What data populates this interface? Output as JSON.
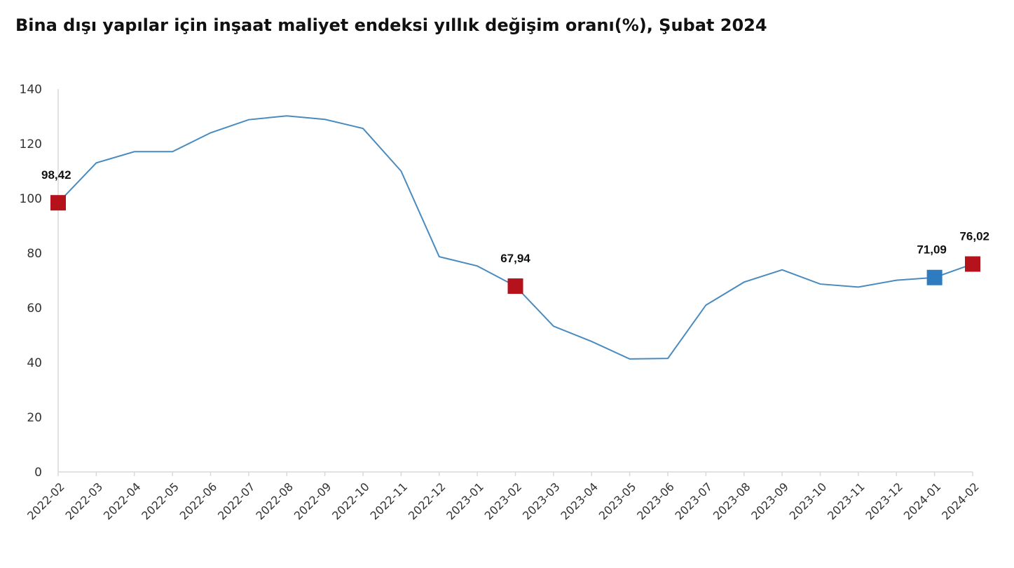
{
  "chart_data": {
    "type": "line",
    "title": "Bina dışı yapılar için inşaat maliyet endeksi yıllık değişim oranı(%), Şubat 2024",
    "xlabel": "",
    "ylabel": "",
    "ylim": [
      0,
      140
    ],
    "yticks": [
      0,
      20,
      40,
      60,
      80,
      100,
      120,
      140
    ],
    "grid": false,
    "legend": "none",
    "categories": [
      "2022-02",
      "2022-03",
      "2022-04",
      "2022-05",
      "2022-06",
      "2022-07",
      "2022-08",
      "2022-09",
      "2022-10",
      "2022-11",
      "2022-12",
      "2023-01",
      "2023-02",
      "2023-03",
      "2023-04",
      "2023-05",
      "2023-06",
      "2023-07",
      "2023-08",
      "2023-09",
      "2023-10",
      "2023-11",
      "2023-12",
      "2024-01",
      "2024-02"
    ],
    "series": [
      {
        "values": [
          98.42,
          113.0,
          117.1,
          117.1,
          124.0,
          128.8,
          130.2,
          128.9,
          125.6,
          110.0,
          78.7,
          75.3,
          67.94,
          53.3,
          47.7,
          41.3,
          41.5,
          61.0,
          69.4,
          73.9,
          68.7,
          67.6,
          70.1,
          71.09,
          76.02
        ]
      }
    ],
    "line_color": "#4a8bbf",
    "highlighted_points": [
      {
        "category": "2022-02",
        "value": 98.42,
        "label": "98,42",
        "color": "#b5121b"
      },
      {
        "category": "2023-02",
        "value": 67.94,
        "label": "67,94",
        "color": "#b5121b"
      },
      {
        "category": "2024-01",
        "value": 71.09,
        "label": "71,09",
        "color": "#2e7bbf"
      },
      {
        "category": "2024-02",
        "value": 76.02,
        "label": "76,02",
        "color": "#b5121b"
      }
    ]
  }
}
